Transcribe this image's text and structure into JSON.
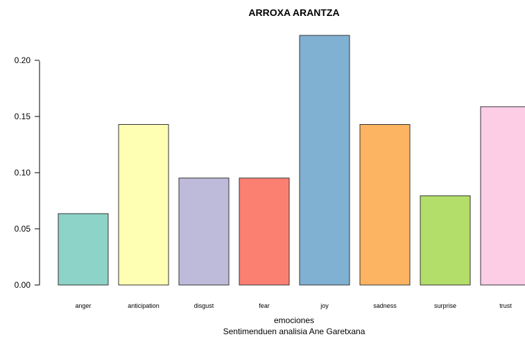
{
  "chart_data": {
    "type": "bar",
    "title": "ARROXA ARANTZA",
    "xlabel": "emociones",
    "subtitle": "Sentimenduen analisia Ane Garetxana",
    "ylabel": "",
    "categories": [
      "anger",
      "anticipation",
      "disgust",
      "fear",
      "joy",
      "sadness",
      "surprise",
      "trust"
    ],
    "values": [
      0.0635,
      0.1429,
      0.0952,
      0.0952,
      0.2222,
      0.1429,
      0.0794,
      0.1587
    ],
    "colors": [
      "#8DD3C7",
      "#FFFFB3",
      "#BEBADA",
      "#FB8072",
      "#80B1D3",
      "#FDB462",
      "#B3DE69",
      "#FCCDE5"
    ],
    "yticks": [
      "0.00",
      "0.05",
      "0.10",
      "0.15",
      "0.20"
    ],
    "ylim": [
      0,
      0.2222
    ],
    "grid": false,
    "legend": "none"
  }
}
